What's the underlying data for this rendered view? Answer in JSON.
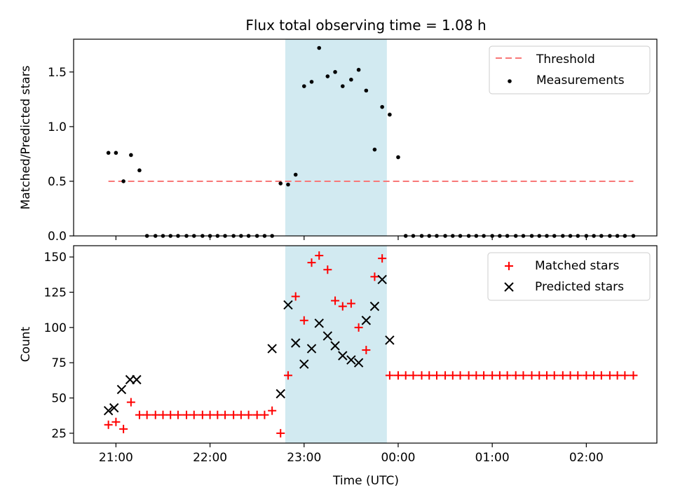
{
  "title": "Flux total observing time = 1.08 h",
  "xlabel": "Time (UTC)",
  "colors": {
    "threshold": "#f87878",
    "measurement": "#000000",
    "matched": "#ff0000",
    "predicted": "#000000",
    "span_fill": "#add8e6"
  },
  "chart_data": [
    {
      "type": "scatter",
      "ylabel": "Matched/Predicted stars",
      "ylim": [
        0,
        1.8
      ],
      "yticks": [
        0.0,
        0.5,
        1.0,
        1.5
      ],
      "ytick_labels": [
        "0.0",
        "0.5",
        "1.0",
        "1.5"
      ],
      "xlim_hours": [
        20.55,
        26.75
      ],
      "xticks_hours": [
        21,
        22,
        23,
        24,
        25,
        26
      ],
      "highlight_span": [
        "22.8",
        "23.88"
      ],
      "legend_position": "upper right",
      "legend": {
        "threshold": "Threshold",
        "measurements": "Measurements"
      },
      "threshold": {
        "value": 0.5,
        "x_range": [
          20.92,
          26.5
        ]
      },
      "measurements_x": [
        20.92,
        21.0,
        21.08,
        21.16,
        21.25,
        21.33,
        21.42,
        21.5,
        21.58,
        21.66,
        21.75,
        21.83,
        21.92,
        22.0,
        22.08,
        22.16,
        22.25,
        22.33,
        22.41,
        22.5,
        22.58,
        22.66,
        22.75,
        22.83,
        22.91,
        23.0,
        23.08,
        23.16,
        23.25,
        23.33,
        23.41,
        23.5,
        23.58,
        23.66,
        23.75,
        23.83,
        23.91,
        24.0,
        24.08,
        24.16,
        24.25,
        24.33,
        24.41,
        24.5,
        24.58,
        24.66,
        24.75,
        24.83,
        24.91,
        25.0,
        25.08,
        25.16,
        25.25,
        25.33,
        25.42,
        25.5,
        25.58,
        25.66,
        25.75,
        25.83,
        25.91,
        26.0,
        26.08,
        26.16,
        26.25,
        26.33,
        26.41,
        26.5
      ],
      "measurements_y": [
        0.76,
        0.76,
        0.5,
        0.74,
        0.6,
        0,
        0,
        0,
        0,
        0,
        0,
        0,
        0,
        0,
        0,
        0,
        0,
        0,
        0,
        0,
        0,
        0,
        0.48,
        0.47,
        0.56,
        1.37,
        1.41,
        1.72,
        1.46,
        1.5,
        1.37,
        1.43,
        1.52,
        1.33,
        0.79,
        1.18,
        1.11,
        0.72,
        0,
        0,
        0,
        0,
        0,
        0,
        0,
        0,
        0,
        0,
        0,
        0,
        0,
        0,
        0,
        0,
        0,
        0,
        0,
        0,
        0,
        0,
        0,
        0,
        0,
        0,
        0,
        0,
        0,
        0
      ]
    },
    {
      "type": "scatter",
      "ylabel": "Count",
      "ylim": [
        18,
        158
      ],
      "yticks": [
        25,
        50,
        75,
        100,
        125,
        150
      ],
      "ytick_labels": [
        "25",
        "50",
        "75",
        "100",
        "125",
        "150"
      ],
      "xlim_hours": [
        20.55,
        26.75
      ],
      "xticks_hours": [
        21,
        22,
        23,
        24,
        25,
        26
      ],
      "xtick_labels": [
        "21:00",
        "22:00",
        "23:00",
        "00:00",
        "01:00",
        "02:00"
      ],
      "highlight_span": [
        "22.8",
        "23.88"
      ],
      "legend_position": "upper right",
      "legend": {
        "matched": "Matched stars",
        "predicted": "Predicted stars"
      },
      "matched_x": [
        20.92,
        21.0,
        21.08,
        21.16,
        21.25,
        21.33,
        21.42,
        21.5,
        21.58,
        21.66,
        21.75,
        21.83,
        21.92,
        22.0,
        22.08,
        22.16,
        22.25,
        22.33,
        22.41,
        22.5,
        22.58,
        22.66,
        22.75,
        22.83,
        22.91,
        23.0,
        23.08,
        23.16,
        23.25,
        23.33,
        23.41,
        23.5,
        23.58,
        23.66,
        23.75,
        23.83,
        23.91,
        24.0,
        24.08,
        24.16,
        24.25,
        24.33,
        24.41,
        24.5,
        24.58,
        24.66,
        24.75,
        24.83,
        24.91,
        25.0,
        25.08,
        25.16,
        25.25,
        25.33,
        25.42,
        25.5,
        25.58,
        25.66,
        25.75,
        25.83,
        25.91,
        26.0,
        26.08,
        26.16,
        26.25,
        26.33,
        26.41,
        26.5
      ],
      "matched_y": [
        31,
        33,
        28,
        47,
        38,
        38,
        38,
        38,
        38,
        38,
        38,
        38,
        38,
        38,
        38,
        38,
        38,
        38,
        38,
        38,
        38,
        41,
        25,
        66,
        122,
        105,
        146,
        151,
        141,
        119,
        115,
        117,
        100,
        84,
        136,
        149,
        66,
        66,
        66,
        66,
        66,
        66,
        66,
        66,
        66,
        66,
        66,
        66,
        66,
        66,
        66,
        66,
        66,
        66,
        66,
        66,
        66,
        66,
        66,
        66,
        66,
        66,
        66,
        66,
        66,
        66,
        66,
        66
      ],
      "predicted_x": [
        20.92,
        20.98,
        21.06,
        21.15,
        21.22,
        22.66,
        22.75,
        22.83,
        22.91,
        23.0,
        23.08,
        23.16,
        23.25,
        23.33,
        23.41,
        23.5,
        23.58,
        23.66,
        23.75,
        23.83,
        23.91
      ],
      "predicted_y": [
        41,
        43,
        56,
        63,
        63,
        85,
        53,
        116,
        89,
        74,
        85,
        103,
        94,
        87,
        80,
        77,
        75,
        105,
        115,
        134,
        91
      ]
    }
  ]
}
